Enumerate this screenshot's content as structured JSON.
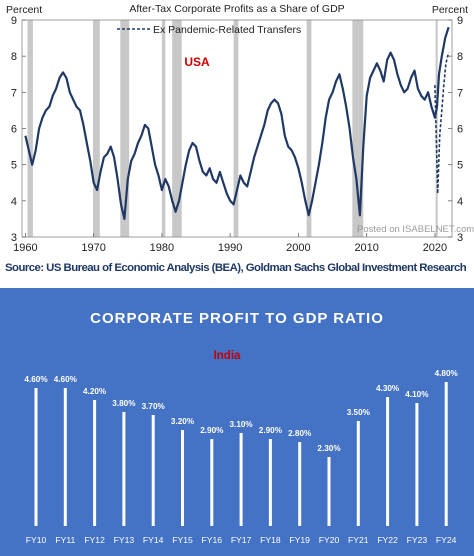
{
  "chart_data": [
    {
      "type": "line",
      "title": "After-Tax Corporate Profits as a Share of GDP",
      "region_label": "USA",
      "ylabel_left": "Percent",
      "ylabel_right": "Percent",
      "ylim": [
        3,
        9
      ],
      "yticks": [
        3,
        4,
        5,
        6,
        7,
        8,
        9
      ],
      "xlim": [
        1959.5,
        2022.5
      ],
      "xticks": [
        1960,
        1970,
        1980,
        1990,
        2000,
        2010,
        2020
      ],
      "legend": {
        "position": "top-center",
        "entries": [
          "Ex Pandemic-Related Transfers"
        ]
      },
      "watermark": "Posted on ISABELNET.com",
      "recessions": [
        [
          1960.3,
          1961.1
        ],
        [
          1969.9,
          1970.9
        ],
        [
          1973.9,
          1975.2
        ],
        [
          1980.0,
          1980.5
        ],
        [
          1981.5,
          1982.9
        ],
        [
          1990.5,
          1991.2
        ],
        [
          2001.2,
          2001.9
        ],
        [
          2007.9,
          2009.5
        ],
        [
          2020.1,
          2020.4
        ]
      ],
      "series": [
        {
          "style": "solid",
          "x": [
            1960,
            1960.5,
            1961,
            1961.5,
            1962,
            1962.5,
            1963,
            1963.5,
            1964,
            1964.5,
            1965,
            1965.5,
            1966,
            1966.5,
            1967,
            1967.5,
            1968,
            1968.5,
            1969,
            1969.5,
            1970,
            1970.5,
            1971,
            1971.5,
            1972,
            1972.5,
            1973,
            1973.5,
            1974,
            1974.5,
            1975,
            1975.5,
            1976,
            1976.5,
            1977,
            1977.5,
            1978,
            1978.5,
            1979,
            1979.5,
            1980,
            1980.5,
            1981,
            1981.5,
            1982,
            1982.5,
            1983,
            1983.5,
            1984,
            1984.5,
            1985,
            1985.5,
            1986,
            1986.5,
            1987,
            1987.5,
            1988,
            1988.5,
            1989,
            1989.5,
            1990,
            1990.5,
            1991,
            1991.5,
            1992,
            1992.5,
            1993,
            1993.5,
            1994,
            1994.5,
            1995,
            1995.5,
            1996,
            1996.5,
            1997,
            1997.5,
            1998,
            1998.5,
            1999,
            1999.5,
            2000,
            2000.5,
            2001,
            2001.5,
            2002,
            2002.5,
            2003,
            2003.5,
            2004,
            2004.5,
            2005,
            2005.5,
            2006,
            2006.5,
            2007,
            2007.5,
            2008,
            2008.5,
            2009,
            2009.5,
            2010,
            2010.5,
            2011,
            2011.5,
            2012,
            2012.5,
            2013,
            2013.5,
            2014,
            2014.5,
            2015,
            2015.5,
            2016,
            2016.5,
            2017,
            2017.5,
            2018,
            2018.5,
            2019,
            2019.5,
            2020,
            2020.3,
            2020.6,
            2021,
            2021.5,
            2022
          ],
          "y": [
            5.8,
            5.4,
            5.0,
            5.4,
            6.0,
            6.3,
            6.5,
            6.6,
            6.9,
            7.1,
            7.4,
            7.55,
            7.4,
            7.0,
            6.8,
            6.6,
            6.5,
            6.1,
            5.6,
            5.1,
            4.5,
            4.3,
            4.8,
            5.2,
            5.3,
            5.5,
            5.2,
            4.6,
            3.9,
            3.5,
            4.6,
            5.1,
            5.3,
            5.6,
            5.8,
            6.1,
            6.0,
            5.5,
            5.0,
            4.7,
            4.3,
            4.6,
            4.4,
            4.0,
            3.7,
            4.0,
            4.5,
            5.0,
            5.4,
            5.6,
            5.5,
            5.1,
            4.8,
            4.7,
            4.9,
            4.6,
            4.5,
            4.8,
            4.5,
            4.2,
            4.0,
            3.9,
            4.3,
            4.7,
            4.5,
            4.4,
            4.8,
            5.2,
            5.5,
            5.8,
            6.1,
            6.5,
            6.7,
            6.8,
            6.7,
            6.4,
            5.8,
            5.5,
            5.4,
            5.2,
            4.9,
            4.5,
            4.0,
            3.6,
            4.0,
            4.5,
            5.0,
            5.6,
            6.3,
            6.8,
            7.0,
            7.3,
            7.5,
            7.1,
            6.6,
            6.0,
            5.2,
            4.6,
            3.6,
            5.5,
            6.9,
            7.4,
            7.6,
            7.8,
            7.6,
            7.3,
            7.9,
            8.1,
            7.9,
            7.5,
            7.2,
            7.0,
            7.1,
            7.4,
            7.6,
            7.1,
            6.9,
            6.8,
            7.0,
            6.6,
            6.3,
            6.6,
            7.5,
            8.0,
            8.5,
            8.8
          ]
        },
        {
          "name": "Ex Pandemic-Related Transfers",
          "style": "dashed",
          "x": [
            2020.0,
            2020.4,
            2020.7,
            2021.0,
            2021.3,
            2021.6,
            2022.0
          ],
          "y": [
            7.2,
            4.2,
            5.8,
            6.5,
            7.2,
            7.8,
            8.1
          ]
        }
      ]
    },
    {
      "type": "bar",
      "title": "CORPORATE PROFIT TO GDP RATIO",
      "region_label": "India",
      "categories": [
        "FY10",
        "FY11",
        "FY12",
        "FY13",
        "FY14",
        "FY15",
        "FY16",
        "FY17",
        "FY18",
        "FY19",
        "FY20",
        "FY21",
        "FY22",
        "FY23",
        "FY24"
      ],
      "values": [
        4.6,
        4.6,
        4.2,
        3.8,
        3.7,
        3.2,
        2.9,
        3.1,
        2.9,
        2.8,
        2.3,
        3.5,
        4.3,
        4.1,
        4.8
      ],
      "data_labels": [
        "4.60%",
        "4.60%",
        "4.20%",
        "3.80%",
        "3.70%",
        "3.20%",
        "2.90%",
        "3.10%",
        "2.90%",
        "2.80%",
        "2.30%",
        "3.50%",
        "4.30%",
        "4.10%",
        "4.80%"
      ],
      "ylim": [
        0,
        4.8
      ],
      "grid": false,
      "colors": {
        "background": "#4472c4",
        "bar": "#ffffff",
        "text": "#ffffff",
        "region_label": "#c00000"
      }
    }
  ],
  "source_text": "Source: US Bureau of Economic Analysis (BEA), Goldman Sachs Global Investment Research",
  "colors": {
    "line": "#1f3864",
    "recession": "#c8c8c8",
    "usa_label": "#cc0000"
  }
}
